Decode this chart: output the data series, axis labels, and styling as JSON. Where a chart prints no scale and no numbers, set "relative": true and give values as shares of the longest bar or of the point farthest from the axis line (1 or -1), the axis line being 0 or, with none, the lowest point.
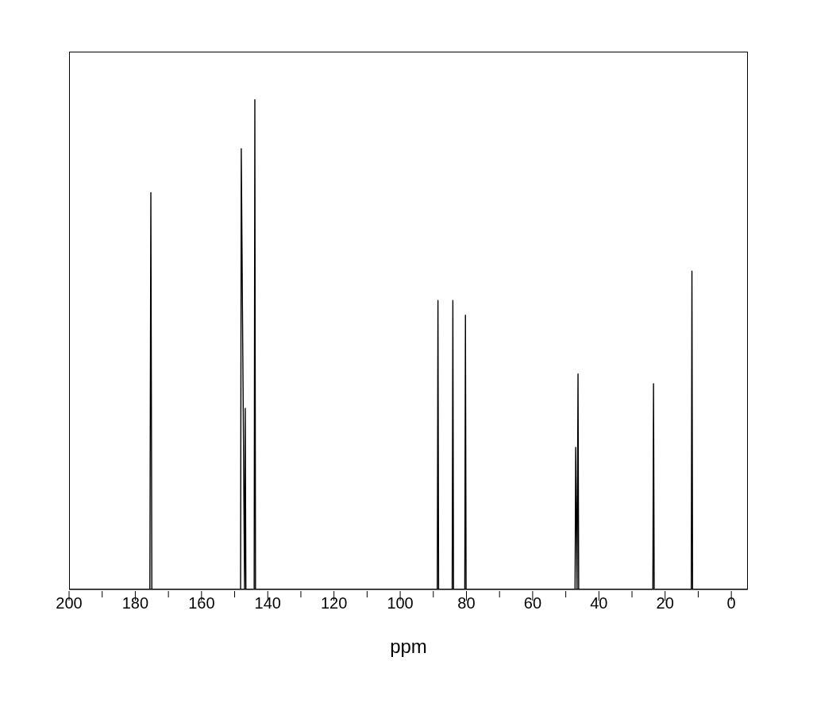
{
  "chart_data": {
    "type": "line",
    "xlabel": "ppm",
    "relative": true,
    "xlim": [
      200,
      -5
    ],
    "xticks": [
      200,
      {
        "value": 190,
        "label": null
      },
      180,
      {
        "value": 170,
        "label": null
      },
      160,
      {
        "value": 150,
        "label": null
      },
      140,
      {
        "value": 130,
        "label": null
      },
      120,
      {
        "value": 110,
        "label": null
      },
      100,
      {
        "value": 90,
        "label": null
      },
      80,
      {
        "value": 70,
        "label": null
      },
      60,
      {
        "value": 50,
        "label": null
      },
      40,
      {
        "value": 30,
        "label": null
      },
      20,
      {
        "value": 10,
        "label": null
      },
      0
    ],
    "x": [
      200,
      175.6,
      175.3,
      175.0,
      148.2,
      148.0,
      147.0,
      146.8,
      146.6,
      144.1,
      143.9,
      143.7,
      88.8,
      88.6,
      88.4,
      84.3,
      84.1,
      83.9,
      80.5,
      80.3,
      80.1,
      47.2,
      47.0,
      46.6,
      46.3,
      46.1,
      23.7,
      23.5,
      23.3,
      12.1,
      11.9,
      11.7,
      -5
    ],
    "series": [
      {
        "color": "#000000",
        "values": [
          0,
          0,
          0.81,
          0,
          0,
          0.9,
          0,
          0.37,
          0,
          0,
          1.0,
          0,
          0,
          0.59,
          0,
          0,
          0.59,
          0,
          0,
          0.56,
          0,
          0,
          0.29,
          0,
          0.44,
          0,
          0,
          0.42,
          0,
          0,
          0.65,
          0,
          0
        ]
      }
    ],
    "marker": "none",
    "line_style": "solid"
  }
}
